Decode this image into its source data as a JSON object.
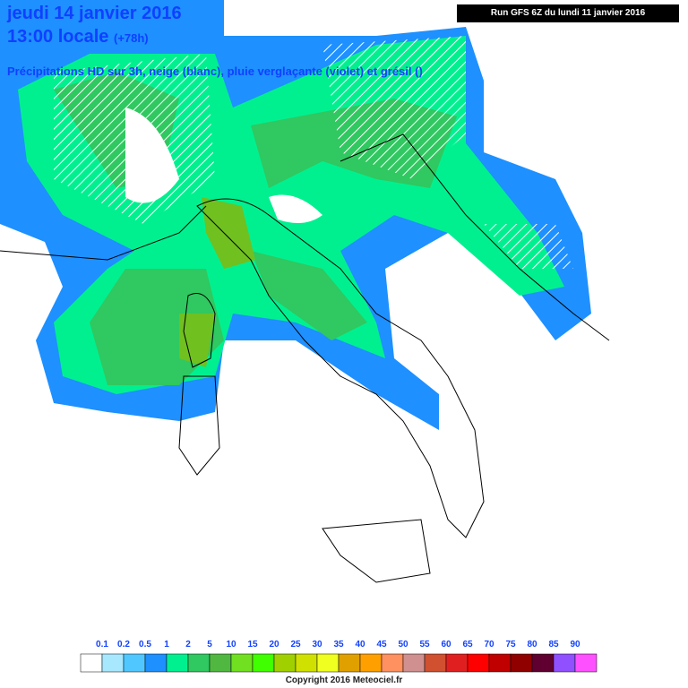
{
  "header": {
    "date": "jeudi 14 janvier 2016",
    "time": "13:00 locale",
    "offset": "(+78h)",
    "subtitle": "Précipitations HD sur 3h, neige (blanc), pluie verglaçante (violet) et grésil ()",
    "run": "Run GFS 6Z du lundi 11 janvier 2016"
  },
  "legend": {
    "labels": [
      "0.1",
      "0.2",
      "0.5",
      "1",
      "2",
      "5",
      "10",
      "15",
      "20",
      "25",
      "30",
      "35",
      "40",
      "45",
      "50",
      "55",
      "60",
      "65",
      "70",
      "75",
      "80",
      "85",
      "90"
    ],
    "colors": [
      "#ffffff",
      "#a8e8ff",
      "#50c8ff",
      "#1e90ff",
      "#00f090",
      "#30c860",
      "#50b840",
      "#70e020",
      "#40ff00",
      "#a0d000",
      "#d0e000",
      "#f0ff20",
      "#e0a000",
      "#ffa000",
      "#ff9060",
      "#d09090",
      "#d05030",
      "#e02020",
      "#ff0000",
      "#c00000",
      "#900000",
      "#600030",
      "#9050ff",
      "#ff50ff"
    ]
  },
  "footer": {
    "copyright": "Copyright 2016 Meteociel.fr"
  }
}
